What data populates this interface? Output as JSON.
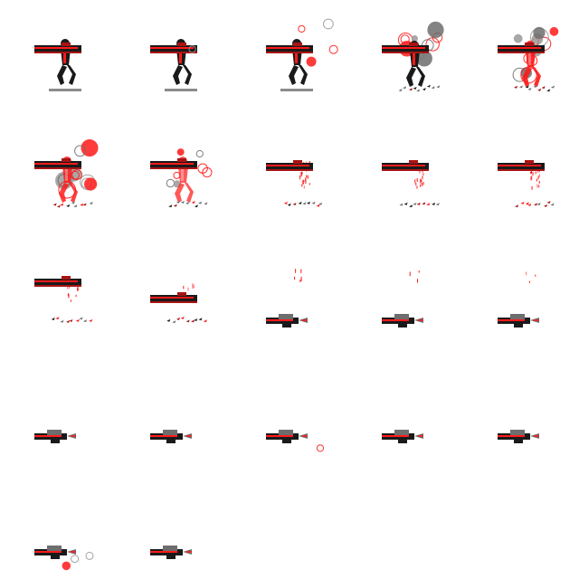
{
  "sheet": {
    "title": "",
    "columns": 5,
    "rows": 5,
    "frame_count": 22,
    "colors": {
      "background": "#ffffff",
      "red": "#ff1a1a",
      "dark_red": "#a81414",
      "black": "#1a1a1a",
      "gray": "#6e6e6e",
      "light_gray": "#9a9a9a",
      "pink": "#ff6a6a"
    },
    "frames": [
      {
        "index": 1,
        "pose": "standing",
        "smoke": 0.0,
        "figure_red": 0.15,
        "dissolve": 0.0,
        "weapon": "held",
        "debris": false
      },
      {
        "index": 2,
        "pose": "standing",
        "smoke": 0.1,
        "figure_red": 0.25,
        "dissolve": 0.0,
        "weapon": "held",
        "debris": false
      },
      {
        "index": 3,
        "pose": "standing",
        "smoke": 0.3,
        "figure_red": 0.35,
        "dissolve": 0.0,
        "weapon": "held",
        "debris": false
      },
      {
        "index": 4,
        "pose": "burst",
        "smoke": 0.7,
        "figure_red": 0.5,
        "dissolve": 0.0,
        "weapon": "held",
        "debris": true
      },
      {
        "index": 5,
        "pose": "burst",
        "smoke": 0.9,
        "figure_red": 0.8,
        "dissolve": 0.1,
        "weapon": "held",
        "debris": true
      },
      {
        "index": 6,
        "pose": "burst",
        "smoke": 0.8,
        "figure_red": 1.0,
        "dissolve": 0.2,
        "weapon": "held",
        "debris": true
      },
      {
        "index": 7,
        "pose": "burst",
        "smoke": 0.5,
        "figure_red": 1.0,
        "dissolve": 0.35,
        "weapon": "held",
        "debris": true
      },
      {
        "index": 8,
        "pose": "fading",
        "smoke": 0.2,
        "figure_red": 1.0,
        "dissolve": 0.5,
        "weapon": "held",
        "debris": true
      },
      {
        "index": 9,
        "pose": "fading",
        "smoke": 0.1,
        "figure_red": 1.0,
        "dissolve": 0.65,
        "weapon": "held",
        "debris": true
      },
      {
        "index": 10,
        "pose": "fading",
        "smoke": 0.0,
        "figure_red": 1.0,
        "dissolve": 0.75,
        "weapon": "held",
        "debris": true
      },
      {
        "index": 11,
        "pose": "fading",
        "smoke": 0.0,
        "figure_red": 1.0,
        "dissolve": 0.82,
        "weapon": "held",
        "debris": true
      },
      {
        "index": 12,
        "pose": "fading",
        "smoke": 0.0,
        "figure_red": 1.0,
        "dissolve": 0.88,
        "weapon": "falling",
        "debris": true
      },
      {
        "index": 13,
        "pose": "wisp",
        "smoke": 0.0,
        "figure_red": 1.0,
        "dissolve": 0.92,
        "weapon": "dropped",
        "debris": false
      },
      {
        "index": 14,
        "pose": "wisp",
        "smoke": 0.0,
        "figure_red": 1.0,
        "dissolve": 0.96,
        "weapon": "dropped",
        "debris": false
      },
      {
        "index": 15,
        "pose": "wisp",
        "smoke": 0.0,
        "figure_red": 1.0,
        "dissolve": 0.98,
        "weapon": "dropped",
        "debris": false
      },
      {
        "index": 16,
        "pose": "none",
        "smoke": 0.0,
        "figure_red": 0.0,
        "dissolve": 1.0,
        "weapon": "dropped",
        "debris": false
      },
      {
        "index": 17,
        "pose": "none",
        "smoke": 0.0,
        "figure_red": 0.0,
        "dissolve": 1.0,
        "weapon": "dropped",
        "debris": false
      },
      {
        "index": 18,
        "pose": "none",
        "smoke": 0.1,
        "figure_red": 0.0,
        "dissolve": 1.0,
        "weapon": "dropped",
        "debris": false
      },
      {
        "index": 19,
        "pose": "none",
        "smoke": 0.0,
        "figure_red": 0.0,
        "dissolve": 1.0,
        "weapon": "dropped",
        "debris": false
      },
      {
        "index": 20,
        "pose": "none",
        "smoke": 0.0,
        "figure_red": 0.0,
        "dissolve": 1.0,
        "weapon": "dropped",
        "debris": false
      },
      {
        "index": 21,
        "pose": "none",
        "smoke": 0.2,
        "figure_red": 0.0,
        "dissolve": 1.0,
        "weapon": "dropped",
        "debris": false
      },
      {
        "index": 22,
        "pose": "none",
        "smoke": 0.0,
        "figure_red": 0.0,
        "dissolve": 1.0,
        "weapon": "dropped",
        "debris": false
      }
    ]
  }
}
